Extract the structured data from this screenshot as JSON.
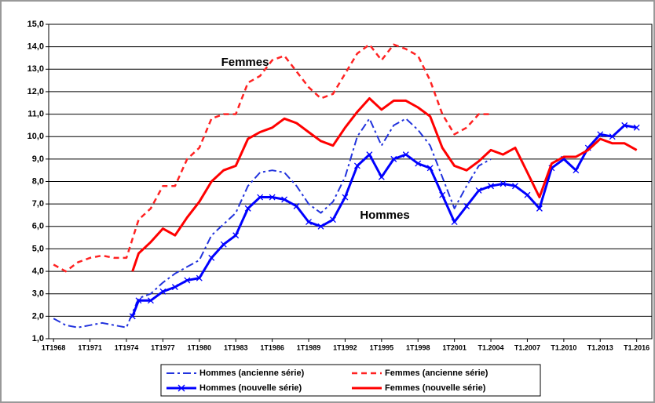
{
  "chart_data": {
    "type": "line",
    "annotations": [
      "Femmes",
      "Hommes"
    ],
    "xlim": [
      1967.6,
      2017.25
    ],
    "xticks": [
      {
        "value": 1968,
        "label": "1T1968"
      },
      {
        "value": 1971,
        "label": "1T1971"
      },
      {
        "value": 1974,
        "label": "1T1974"
      },
      {
        "value": 1977,
        "label": "1T1977"
      },
      {
        "value": 1980,
        "label": "1T1980"
      },
      {
        "value": 1983,
        "label": "1T1983"
      },
      {
        "value": 1986,
        "label": "1T1986"
      },
      {
        "value": 1989,
        "label": "1T1989"
      },
      {
        "value": 1992,
        "label": "1T1992"
      },
      {
        "value": 1995,
        "label": "1T1995"
      },
      {
        "value": 1998,
        "label": "1T1998"
      },
      {
        "value": 2001,
        "label": "1T2001"
      },
      {
        "value": 2004,
        "label": "T1.2004"
      },
      {
        "value": 2007,
        "label": "T1.2007"
      },
      {
        "value": 2010,
        "label": "T1.2010"
      },
      {
        "value": 2013,
        "label": "T1.2013"
      },
      {
        "value": 2016,
        "label": "T1.2016"
      }
    ],
    "ylim": [
      1,
      15
    ],
    "yticks": [
      {
        "value": 1,
        "label": "1,0"
      },
      {
        "value": 2,
        "label": "2,0"
      },
      {
        "value": 3,
        "label": "3,0"
      },
      {
        "value": 4,
        "label": "4,0"
      },
      {
        "value": 5,
        "label": "5,0"
      },
      {
        "value": 6,
        "label": "6,0"
      },
      {
        "value": 7,
        "label": "7,0"
      },
      {
        "value": 8,
        "label": "8,0"
      },
      {
        "value": 9,
        "label": "9,0"
      },
      {
        "value": 10,
        "label": "10,0"
      },
      {
        "value": 11,
        "label": "11,0"
      },
      {
        "value": 12,
        "label": "12,0"
      },
      {
        "value": 13,
        "label": "13,0"
      },
      {
        "value": 14,
        "label": "14,0"
      },
      {
        "value": 15,
        "label": "15,0"
      }
    ],
    "grid": true,
    "legend": "bottom",
    "series": [
      {
        "name": "Hommes (ancienne série)",
        "color": "#2233dd",
        "style": "dashdot",
        "x": [
          1968,
          1969,
          1970,
          1971,
          1972,
          1973,
          1974,
          1975,
          1976,
          1977,
          1978,
          1979,
          1980,
          1981,
          1982,
          1983,
          1984,
          1985,
          1986,
          1987,
          1988,
          1989,
          1990,
          1991,
          1992,
          1993,
          1994,
          1995,
          1996,
          1997,
          1998,
          1999,
          2000,
          2001,
          2002,
          2003,
          2004
        ],
        "values": [
          1.9,
          1.6,
          1.5,
          1.6,
          1.7,
          1.6,
          1.5,
          2.8,
          3.0,
          3.5,
          3.9,
          4.2,
          4.5,
          5.6,
          6.1,
          6.6,
          7.8,
          8.4,
          8.5,
          8.4,
          7.8,
          7.0,
          6.6,
          7.1,
          8.2,
          10.0,
          10.8,
          9.6,
          10.5,
          10.8,
          10.3,
          9.6,
          8.2,
          6.8,
          7.8,
          8.7,
          9.0
        ]
      },
      {
        "name": "Femmes (ancienne série)",
        "color": "#ff2222",
        "style": "dash",
        "x": [
          1968,
          1969,
          1970,
          1971,
          1972,
          1973,
          1974,
          1975,
          1976,
          1977,
          1978,
          1979,
          1980,
          1981,
          1982,
          1983,
          1984,
          1985,
          1986,
          1987,
          1988,
          1989,
          1990,
          1991,
          1992,
          1993,
          1994,
          1995,
          1996,
          1997,
          1998,
          1999,
          2000,
          2001,
          2002,
          2003,
          2004
        ],
        "values": [
          4.3,
          4.0,
          4.4,
          4.6,
          4.7,
          4.6,
          4.6,
          6.3,
          6.8,
          7.8,
          7.8,
          9.0,
          9.5,
          10.8,
          11.0,
          11.0,
          12.4,
          12.7,
          13.4,
          13.6,
          12.9,
          12.2,
          11.7,
          11.9,
          12.8,
          13.7,
          14.1,
          13.4,
          14.1,
          13.9,
          13.6,
          12.5,
          11.0,
          10.1,
          10.4,
          11.0,
          11.0
        ]
      },
      {
        "name": "Hommes (nouvelle série)",
        "color": "#0000ff",
        "style": "solid",
        "marker": "x",
        "x": [
          1974.5,
          1975,
          1976,
          1977,
          1978,
          1979,
          1980,
          1981,
          1982,
          1983,
          1984,
          1985,
          1986,
          1987,
          1988,
          1989,
          1990,
          1991,
          1992,
          1993,
          1994,
          1995,
          1996,
          1997,
          1998,
          1999,
          2000,
          2001,
          2002,
          2003,
          2004,
          2005,
          2006,
          2007,
          2008,
          2009,
          2010,
          2011,
          2012,
          2013,
          2014,
          2015,
          2016
        ],
        "values": [
          2.0,
          2.7,
          2.7,
          3.1,
          3.3,
          3.6,
          3.7,
          4.6,
          5.2,
          5.6,
          6.8,
          7.3,
          7.3,
          7.2,
          6.9,
          6.2,
          6.0,
          6.3,
          7.3,
          8.7,
          9.2,
          8.2,
          9.0,
          9.2,
          8.8,
          8.6,
          7.4,
          6.2,
          6.9,
          7.6,
          7.8,
          7.9,
          7.8,
          7.4,
          6.8,
          8.6,
          9.0,
          8.5,
          9.5,
          10.1,
          10.0,
          10.5,
          10.4
        ]
      },
      {
        "name": "Femmes (nouvelle série)",
        "color": "#ff0000",
        "style": "solid",
        "x": [
          1974.5,
          1975,
          1976,
          1977,
          1978,
          1979,
          1980,
          1981,
          1982,
          1983,
          1984,
          1985,
          1986,
          1987,
          1988,
          1989,
          1990,
          1991,
          1992,
          1993,
          1994,
          1995,
          1996,
          1997,
          1998,
          1999,
          2000,
          2001,
          2002,
          2003,
          2004,
          2005,
          2006,
          2007,
          2008,
          2009,
          2010,
          2011,
          2012,
          2013,
          2014,
          2015,
          2016
        ],
        "values": [
          4.0,
          4.8,
          5.3,
          5.9,
          5.6,
          6.4,
          7.1,
          8.0,
          8.5,
          8.7,
          9.9,
          10.2,
          10.4,
          10.8,
          10.6,
          10.2,
          9.8,
          9.6,
          10.4,
          11.1,
          11.7,
          11.2,
          11.6,
          11.6,
          11.3,
          10.9,
          9.5,
          8.7,
          8.5,
          8.9,
          9.4,
          9.2,
          9.5,
          8.4,
          7.3,
          8.8,
          9.1,
          9.1,
          9.4,
          9.9,
          9.7,
          9.7,
          9.4
        ]
      }
    ]
  }
}
